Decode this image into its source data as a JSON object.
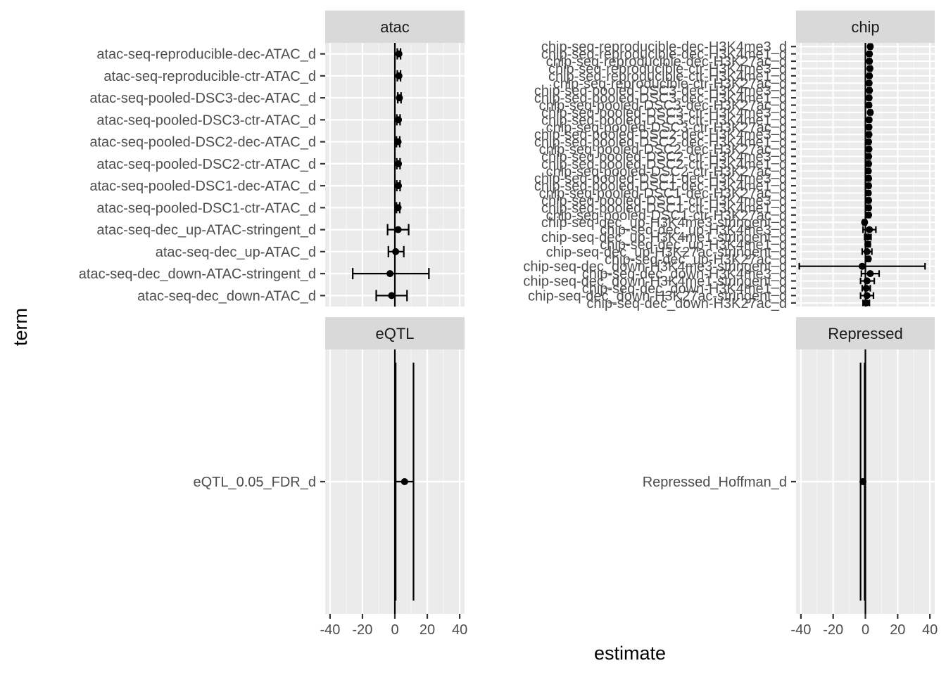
{
  "chart_data": {
    "type": "forest",
    "xlabel": "estimate",
    "ylabel": "term",
    "xlim": [
      -43,
      43
    ],
    "xticks": [
      -40,
      -20,
      0,
      20,
      40
    ],
    "reference_line": 0,
    "grid": true,
    "panels": [
      {
        "strip": "atac",
        "terms": [
          {
            "term": "atac-seq-reproducible-dec-ATAC_d",
            "estimate": 2.5,
            "low": 1.5,
            "high": 3.5
          },
          {
            "term": "atac-seq-reproducible-ctr-ATAC_d",
            "estimate": 2.5,
            "low": 1.5,
            "high": 3.5
          },
          {
            "term": "atac-seq-pooled-DSC3-dec-ATAC_d",
            "estimate": 2.8,
            "low": 1.8,
            "high": 3.8
          },
          {
            "term": "atac-seq-pooled-DSC3-ctr-ATAC_d",
            "estimate": 2.2,
            "low": 1.2,
            "high": 3.2
          },
          {
            "term": "atac-seq-pooled-DSC2-dec-ATAC_d",
            "estimate": 2.0,
            "low": 1.0,
            "high": 3.0
          },
          {
            "term": "atac-seq-pooled-DSC2-ctr-ATAC_d",
            "estimate": 2.2,
            "low": 1.2,
            "high": 3.2
          },
          {
            "term": "atac-seq-pooled-DSC1-dec-ATAC_d",
            "estimate": 2.2,
            "low": 1.2,
            "high": 3.2
          },
          {
            "term": "atac-seq-pooled-DSC1-ctr-ATAC_d",
            "estimate": 2.0,
            "low": 1.0,
            "high": 3.0
          },
          {
            "term": "atac-seq-dec_up-ATAC-stringent_d",
            "estimate": 2.0,
            "low": -4.5,
            "high": 8.5
          },
          {
            "term": "atac-seq-dec_up-ATAC_d",
            "estimate": 0.5,
            "low": -4.0,
            "high": 5.5
          },
          {
            "term": "atac-seq-dec_down-ATAC-stringent_d",
            "estimate": -3.0,
            "low": -26.0,
            "high": 21.0
          },
          {
            "term": "atac-seq-dec_down-ATAC_d",
            "estimate": -2.0,
            "low": -11.5,
            "high": 7.5
          }
        ]
      },
      {
        "strip": "chip",
        "terms": [
          {
            "term": "chip-seq-reproducible-dec-H3K4me3_d",
            "estimate": 3.0,
            "low": 2.0,
            "high": 4.0
          },
          {
            "term": "chip-seq-reproducible-dec-H3K4me1_d",
            "estimate": 2.5,
            "low": 1.5,
            "high": 3.5
          },
          {
            "term": "chip-seq-reproducible-dec-H3K27ac_d",
            "estimate": 2.5,
            "low": 1.5,
            "high": 3.5
          },
          {
            "term": "chip-seq-reproducible-ctr-H3K4me3_d",
            "estimate": 2.8,
            "low": 1.8,
            "high": 3.8
          },
          {
            "term": "chip-seq-reproducible-ctr-H3K4me1_d",
            "estimate": 2.5,
            "low": 1.5,
            "high": 3.5
          },
          {
            "term": "chip-seq-reproducible-ctr-H3K27ac_d",
            "estimate": 2.3,
            "low": 1.3,
            "high": 3.3
          },
          {
            "term": "chip-seq-pooled-DSC3-dec-H3K4me3_d",
            "estimate": 2.5,
            "low": 1.5,
            "high": 3.5
          },
          {
            "term": "chip-seq-pooled-DSC3-dec-H3K4me1_d",
            "estimate": 2.3,
            "low": 1.3,
            "high": 3.3
          },
          {
            "term": "chip-seq-pooled-DSC3-dec-H3K27ac_d",
            "estimate": 2.2,
            "low": 1.2,
            "high": 3.2
          },
          {
            "term": "chip-seq-pooled-DSC3-ctr-H3K4me3_d",
            "estimate": 3.0,
            "low": 2.0,
            "high": 4.0
          },
          {
            "term": "chip-seq-pooled-DSC3-ctr-H3K4me1_d",
            "estimate": 2.3,
            "low": 1.3,
            "high": 3.3
          },
          {
            "term": "chip-seq-pooled-DSC3-ctr-H3K27ac_d",
            "estimate": 2.2,
            "low": 1.2,
            "high": 3.2
          },
          {
            "term": "chip-seq-pooled-DSC2-dec-H3K4me3_d",
            "estimate": 2.2,
            "low": 1.2,
            "high": 3.2
          },
          {
            "term": "chip-seq-pooled-DSC2-dec-H3K4me1_d",
            "estimate": 2.0,
            "low": 1.0,
            "high": 3.0
          },
          {
            "term": "chip-seq-pooled-DSC2-dec-H3K27ac_d",
            "estimate": 2.2,
            "low": 1.2,
            "high": 3.2
          },
          {
            "term": "chip-seq-pooled-DSC2-ctr-H3K4me3_d",
            "estimate": 2.0,
            "low": 1.0,
            "high": 3.0
          },
          {
            "term": "chip-seq-pooled-DSC2-ctr-H3K4me1_d",
            "estimate": 2.0,
            "low": 1.0,
            "high": 3.0
          },
          {
            "term": "chip-seq-pooled-DSC2-ctr-H3K27ac_d",
            "estimate": 1.8,
            "low": 0.8,
            "high": 2.8
          },
          {
            "term": "chip-seq-pooled-DSC1-dec-H3K4me3_d",
            "estimate": 2.0,
            "low": 1.0,
            "high": 3.0
          },
          {
            "term": "chip-seq-pooled-DSC1-dec-H3K4me1_d",
            "estimate": 2.0,
            "low": 1.0,
            "high": 3.0
          },
          {
            "term": "chip-seq-pooled-DSC1-dec-H3K27ac_d",
            "estimate": 1.8,
            "low": 0.8,
            "high": 2.8
          },
          {
            "term": "chip-seq-pooled-DSC1-ctr-H3K4me3_d",
            "estimate": 2.0,
            "low": 1.0,
            "high": 3.0
          },
          {
            "term": "chip-seq-pooled-DSC1-ctr-H3K4me1_d",
            "estimate": 2.0,
            "low": 1.0,
            "high": 3.0
          },
          {
            "term": "chip-seq-pooled-DSC1-ctr-H3K27ac_d",
            "estimate": 2.0,
            "low": 1.0,
            "high": 3.0
          },
          {
            "term": "chip-seq-dec_up-H3K4me3-stringent_d",
            "estimate": -0.5,
            "low": -1.5,
            "high": 0.5
          },
          {
            "term": "chip-seq-dec_up-H3K4me3_d",
            "estimate": 2.5,
            "low": -1.5,
            "high": 6.5
          },
          {
            "term": "chip-seq-dec_up-H3K4me1-stringent_d",
            "estimate": 1.5,
            "low": -0.5,
            "high": 3.5
          },
          {
            "term": "chip-seq-dec_up-H3K4me1_d",
            "estimate": 1.5,
            "low": 0.0,
            "high": 3.0
          },
          {
            "term": "chip-seq-dec_up-H3K27ac-stringent_d",
            "estimate": 1.0,
            "low": -2.0,
            "high": 4.0
          },
          {
            "term": "chip-seq-dec_up-H3K27ac_d",
            "estimate": 1.8,
            "low": 0.8,
            "high": 2.8
          },
          {
            "term": "chip-seq-dec_down-H3K4me3-stringent_d",
            "estimate": -2.0,
            "low": -41.0,
            "high": 37.0
          },
          {
            "term": "chip-seq-dec_down-H3K4me3_d",
            "estimate": 3.0,
            "low": -2.5,
            "high": 8.5
          },
          {
            "term": "chip-seq-dec_down-H3K4me1-stringent_d",
            "estimate": 1.0,
            "low": -3.0,
            "high": 5.5
          },
          {
            "term": "chip-seq-dec_down-H3K4me1_d",
            "estimate": 0.5,
            "low": -2.0,
            "high": 3.0
          },
          {
            "term": "chip-seq-dec_down-H3K27ac-stringent_d",
            "estimate": 1.0,
            "low": -3.0,
            "high": 5.0
          },
          {
            "term": "chip-seq-dec_down-H3K27ac_d",
            "estimate": 0.5,
            "low": -1.5,
            "high": 2.5
          }
        ]
      },
      {
        "strip": "eQTL",
        "terms": [
          {
            "term": "eQTL_0.05_FDR_d",
            "estimate": 6.0,
            "low": 0.5,
            "high": 11.5
          }
        ]
      },
      {
        "strip": "Repressed",
        "terms": [
          {
            "term": "Repressed_Hoffman_d",
            "estimate": -1.5,
            "low": -3.0,
            "high": -0.5
          }
        ]
      }
    ]
  }
}
